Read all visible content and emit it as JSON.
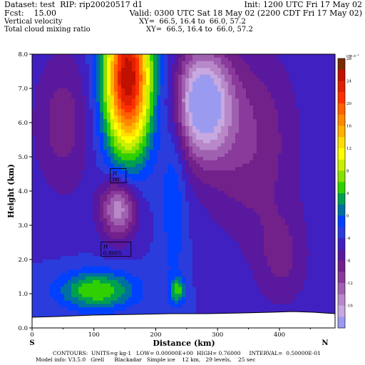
{
  "header": {
    "dataset": "Dataset: test  RIP: rip20020517 d1",
    "init": "Init: 1200 UTC Fri 17 May 02",
    "fcst": "Fcst:    15.00",
    "valid": "Valid: 0300 UTC Sat 18 May 02 (2200 CDT Fri 17 May 02)",
    "field1": "Vertical velocity",
    "xy1": "XY=  66.5, 16.4 to  66.0, 57.2",
    "field2": "Total cloud mixing ratio",
    "xy2": "XY=  66.5, 16.4 to  66.0, 57.2"
  },
  "chart_data": {
    "type": "heatmap",
    "title": "Vertical velocity / Total cloud mixing ratio",
    "xlabel": "Distance (km)",
    "ylabel": "Height (km)",
    "xlim": [
      0,
      490
    ],
    "ylim": [
      0,
      8
    ],
    "xticks": [
      0,
      100,
      200,
      300,
      400
    ],
    "yticks": [
      "0.0",
      "1.0",
      "2.0",
      "3.0",
      "4.0",
      "5.0",
      "6.0",
      "7.0",
      "8.0"
    ],
    "x_end_labels": {
      "left": "S",
      "right": "N"
    },
    "colorbar_unit": "cm s⁻¹",
    "colorbar_ticks": [
      28,
      24,
      20,
      16,
      12,
      8,
      4,
      0,
      -4,
      -8,
      -12,
      -16
    ],
    "extrema_labels": [
      {
        "letter": "H",
        "value": "00",
        "x": 130,
        "y": 4.45
      },
      {
        "letter": "H",
        "value": "0.8605",
        "x": 115,
        "y": 2.3
      }
    ],
    "blobs": [
      {
        "x": 155,
        "y": 7.3,
        "sx": 38,
        "sy": 2.2,
        "v": 30
      },
      {
        "x": 105,
        "y": 1.1,
        "sx": 60,
        "sy": 0.55,
        "v": 10
      },
      {
        "x": 140,
        "y": 3.5,
        "sx": 30,
        "sy": 0.9,
        "v": -12
      },
      {
        "x": 275,
        "y": 6.6,
        "sx": 45,
        "sy": 1.6,
        "v": -16
      },
      {
        "x": 350,
        "y": 5.5,
        "sx": 80,
        "sy": 2.8,
        "v": -6
      },
      {
        "x": 405,
        "y": 2.0,
        "sx": 45,
        "sy": 1.5,
        "v": -4
      },
      {
        "x": 50,
        "y": 6.0,
        "sx": 50,
        "sy": 2.2,
        "v": -5
      },
      {
        "x": 230,
        "y": 4.0,
        "sx": 20,
        "sy": 3.0,
        "v": 4
      },
      {
        "x": 235,
        "y": 1.1,
        "sx": 12,
        "sy": 0.35,
        "v": 8
      }
    ]
  },
  "footer": {
    "line1": "CONTOURS:  UNITS=g kg-1   LOW= 0.00000E+00  HIGH= 0.76000     INTERVAL=  0.50000E-01",
    "line2": "Model info: V3.5.0   Grell      Blackadar   Simple ice    12 km,   29 levels,    25 sec"
  }
}
